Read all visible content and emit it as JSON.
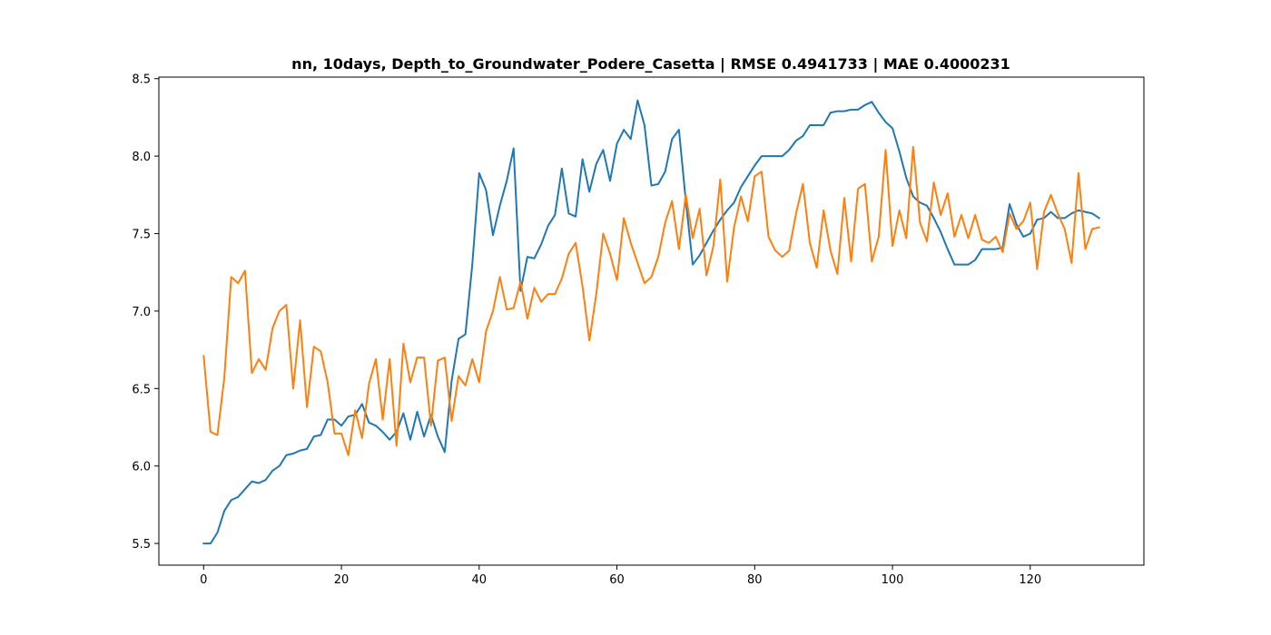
{
  "chart_data": {
    "type": "line",
    "title": "nn, 10days, Depth_to_Groundwater_Podere_Casetta | RMSE 0.4941733 | MAE 0.4000231",
    "xlabel": "",
    "ylabel": "",
    "xlim": [
      -6.5,
      136.5
    ],
    "ylim": [
      5.36,
      8.51
    ],
    "xticks": [
      0,
      20,
      40,
      60,
      80,
      100,
      120
    ],
    "yticks": [
      5.5,
      6.0,
      6.5,
      7.0,
      7.5,
      8.0,
      8.5
    ],
    "grid": false,
    "legend": "none",
    "series": [
      {
        "color": "#1f77b4",
        "values": [
          5.5,
          5.5,
          5.57,
          5.71,
          5.78,
          5.8,
          5.85,
          5.9,
          5.89,
          5.91,
          5.97,
          6.0,
          6.07,
          6.08,
          6.1,
          6.11,
          6.19,
          6.2,
          6.3,
          6.3,
          6.26,
          6.32,
          6.33,
          6.4,
          6.28,
          6.26,
          6.22,
          6.17,
          6.22,
          6.34,
          6.17,
          6.35,
          6.19,
          6.33,
          6.19,
          6.09,
          6.55,
          6.82,
          6.85,
          7.3,
          7.89,
          7.78,
          7.49,
          7.68,
          7.84,
          8.05,
          7.13,
          7.35,
          7.34,
          7.43,
          7.55,
          7.62,
          7.92,
          7.63,
          7.61,
          7.98,
          7.77,
          7.95,
          8.04,
          7.84,
          8.08,
          8.17,
          8.11,
          8.36,
          8.2,
          7.81,
          7.82,
          7.9,
          8.11,
          8.17,
          7.71,
          7.3,
          7.36,
          7.44,
          7.52,
          7.59,
          7.65,
          7.7,
          7.8,
          7.87,
          7.94,
          8.0,
          8.0,
          8.0,
          8.0,
          8.04,
          8.1,
          8.13,
          8.2,
          8.2,
          8.2,
          8.28,
          8.29,
          8.29,
          8.3,
          8.3,
          8.33,
          8.35,
          8.28,
          8.22,
          8.18,
          8.03,
          7.86,
          7.74,
          7.7,
          7.68,
          7.6,
          7.51,
          7.4,
          7.3,
          7.3,
          7.3,
          7.33,
          7.4,
          7.4,
          7.4,
          7.41,
          7.69,
          7.56,
          7.48,
          7.5,
          7.59,
          7.6,
          7.64,
          7.6,
          7.6,
          7.63,
          7.65,
          7.64,
          7.63,
          7.6
        ]
      },
      {
        "color": "#ff7f0e",
        "values": [
          6.71,
          6.22,
          6.2,
          6.57,
          7.22,
          7.18,
          7.26,
          6.6,
          6.69,
          6.62,
          6.89,
          7.0,
          7.04,
          6.5,
          6.94,
          6.38,
          6.77,
          6.74,
          6.54,
          6.21,
          6.21,
          6.07,
          6.36,
          6.18,
          6.53,
          6.69,
          6.3,
          6.69,
          6.13,
          6.79,
          6.54,
          6.7,
          6.7,
          6.26,
          6.68,
          6.7,
          6.29,
          6.58,
          6.52,
          6.69,
          6.54,
          6.87,
          7.0,
          7.22,
          7.01,
          7.02,
          7.19,
          6.95,
          7.15,
          7.06,
          7.11,
          7.11,
          7.21,
          7.37,
          7.44,
          7.16,
          6.81,
          7.11,
          7.5,
          7.37,
          7.2,
          7.6,
          7.44,
          7.31,
          7.18,
          7.22,
          7.35,
          7.57,
          7.71,
          7.4,
          7.75,
          7.47,
          7.66,
          7.23,
          7.42,
          7.85,
          7.19,
          7.54,
          7.74,
          7.58,
          7.87,
          7.9,
          7.48,
          7.39,
          7.35,
          7.39,
          7.63,
          7.82,
          7.44,
          7.28,
          7.65,
          7.39,
          7.24,
          7.73,
          7.32,
          7.79,
          7.82,
          7.32,
          7.48,
          8.04,
          7.42,
          7.65,
          7.47,
          8.06,
          7.57,
          7.45,
          7.83,
          7.62,
          7.76,
          7.48,
          7.62,
          7.47,
          7.62,
          7.46,
          7.44,
          7.48,
          7.38,
          7.63,
          7.53,
          7.58,
          7.7,
          7.27,
          7.64,
          7.75,
          7.63,
          7.53,
          7.31,
          7.89,
          7.4,
          7.53,
          7.54
        ]
      }
    ]
  }
}
